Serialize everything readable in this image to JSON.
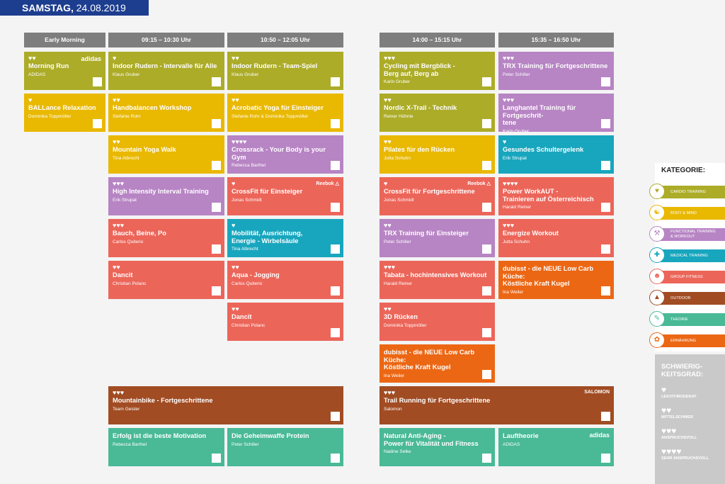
{
  "date": {
    "day": "SAMSTAG,",
    "date": "24.08.2019"
  },
  "columns": [
    "Early Morning",
    "09:15 – 10:30 Uhr",
    "10:50 – 12:05 Uhr",
    "14:00 – 15:15 Uhr",
    "15:35 – 16:50 Uhr"
  ],
  "sessions": [
    {
      "col": 0,
      "row": 0,
      "cat": "cardio",
      "hearts": "♥♥",
      "title": "Morning Run",
      "teacher": "ADIDAS",
      "brand": "adidas"
    },
    {
      "col": 0,
      "row": 1,
      "cat": "body",
      "hearts": "♥",
      "title": "BALLance Relaxation",
      "teacher": "Dominika Toppmöller"
    },
    {
      "col": 1,
      "row": 0,
      "cat": "cardio",
      "hearts": "♥",
      "title": "Indoor Rudern - Intervalle für Alle",
      "teacher": "Klaus Gruber"
    },
    {
      "col": 1,
      "row": 1,
      "cat": "body",
      "hearts": "♥♥",
      "title": "Handbalancen Workshop",
      "teacher": "Stefanie Rohr"
    },
    {
      "col": 1,
      "row": 2,
      "cat": "body",
      "hearts": "♥♥",
      "title": "Mountain Yoga Walk",
      "teacher": "Tina Albrecht"
    },
    {
      "col": 1,
      "row": 3,
      "cat": "func",
      "hearts": "♥♥♥",
      "title": "High Intensity Interval Training",
      "teacher": "Erik Strupat"
    },
    {
      "col": 1,
      "row": 4,
      "cat": "group",
      "hearts": "♥♥♥",
      "title": "Bauch, Beine, Po",
      "teacher": "Carlos Quiterio"
    },
    {
      "col": 1,
      "row": 5,
      "cat": "group",
      "hearts": "♥♥",
      "title": "Dancit",
      "teacher": "Christian Polanc"
    },
    {
      "col": 2,
      "row": 0,
      "cat": "cardio",
      "hearts": "♥♥",
      "title": "Indoor Rudern - Team-Spiel",
      "teacher": "Klaus Gruber"
    },
    {
      "col": 2,
      "row": 1,
      "cat": "body",
      "hearts": "♥♥",
      "title": "Acrobatic Yoga für Einsteiger",
      "teacher": "Stefanie Rohr & Dominika Toppmöller"
    },
    {
      "col": 2,
      "row": 2,
      "cat": "func",
      "hearts": "♥♥♥♥",
      "title": "Crossrack - Your Body is your Gym",
      "teacher": "Rebecca Barthel"
    },
    {
      "col": 2,
      "row": 3,
      "cat": "group",
      "hearts": "♥",
      "title": "CrossFit für Einsteiger",
      "teacher": "Jonas Schmidt",
      "brand": "Reebok △"
    },
    {
      "col": 2,
      "row": 4,
      "cat": "med",
      "hearts": "♥",
      "title": "Mobilität, Ausrichtung,\nEnergie - Wirbelsäule",
      "teacher": "Tina Albrecht"
    },
    {
      "col": 2,
      "row": 5,
      "cat": "group",
      "hearts": "♥♥",
      "title": "Aqua - Jogging",
      "teacher": "Carlos Quiterio"
    },
    {
      "col": 2,
      "row": 6,
      "cat": "group",
      "hearts": "♥♥",
      "title": "Dancit",
      "teacher": "Christian Polanc"
    },
    {
      "col": 3,
      "row": 0,
      "cat": "cardio",
      "hearts": "♥♥♥",
      "title": "Cycling mit Bergblick -\nBerg auf, Berg ab",
      "teacher": "Karin Gruber"
    },
    {
      "col": 3,
      "row": 1,
      "cat": "cardio",
      "hearts": "♥♥",
      "title": "Nordic X-Trail - Technik",
      "teacher": "Reiner Hühnle"
    },
    {
      "col": 3,
      "row": 2,
      "cat": "body",
      "hearts": "♥♥",
      "title": "Pilates für den Rücken",
      "teacher": "Jutta Schuhn"
    },
    {
      "col": 3,
      "row": 3,
      "cat": "group",
      "hearts": "♥",
      "title": "CrossFit für Fortgeschrittene",
      "teacher": "Jonas Schmidt",
      "brand": "Reebok △"
    },
    {
      "col": 3,
      "row": 4,
      "cat": "func",
      "hearts": "♥♥",
      "title": "TRX Training für Einsteiger",
      "teacher": "Peter Schiller"
    },
    {
      "col": 3,
      "row": 5,
      "cat": "group",
      "hearts": "♥♥♥",
      "title": "Tabata - hochintensives Workout",
      "teacher": "Harald Reiner"
    },
    {
      "col": 3,
      "row": 6,
      "cat": "group",
      "hearts": "♥♥",
      "title": "3D Rücken",
      "teacher": "Dominika Toppmöller"
    },
    {
      "col": 3,
      "row": 7,
      "cat": "nutr",
      "hearts": "",
      "title": "dubisst - die NEUE Low Carb Küche:\nKöstliche Kraft Kugel",
      "teacher": "Ina Weiler"
    },
    {
      "col": 4,
      "row": 0,
      "cat": "func",
      "hearts": "♥♥♥",
      "title": "TRX Training für Fortgeschrittene",
      "teacher": "Peter Schiller"
    },
    {
      "col": 4,
      "row": 1,
      "cat": "func",
      "hearts": "♥♥♥",
      "title": "Langhantel Training für Fortgeschrit-\ntene",
      "teacher": "Karin Gruber"
    },
    {
      "col": 4,
      "row": 2,
      "cat": "med",
      "hearts": "♥",
      "title": "Gesundes Schultergelenk",
      "teacher": "Erik Strupat"
    },
    {
      "col": 4,
      "row": 3,
      "cat": "group",
      "hearts": "♥♥♥♥",
      "title": "Power WorkAUT -\nTrainieren auf Österreichisch",
      "teacher": "Harald Reiner"
    },
    {
      "col": 4,
      "row": 4,
      "cat": "group",
      "hearts": "♥♥♥",
      "title": "Energize Workout",
      "teacher": "Jutta Schuhn"
    },
    {
      "col": 4,
      "row": 5,
      "cat": "nutr",
      "hearts": "",
      "title": "dubisst - die NEUE Low Carb Küche:\nKöstliche Kraft Kugel",
      "teacher": "Ina Weiler"
    }
  ],
  "wide_sessions": [
    {
      "block": "left",
      "cat": "out",
      "hearts": "♥♥♥",
      "title": "Mountainbike - Fortgeschrittene",
      "teacher": "Team Geisler"
    },
    {
      "block": "right",
      "cat": "out",
      "hearts": "♥♥♥",
      "title": "Trail Running für Fortgeschrittene",
      "teacher": "Salomon",
      "brand": "SALOMON"
    }
  ],
  "bottom_sessions": [
    {
      "col": 1,
      "cat": "theo",
      "hearts": "",
      "title": "Erfolg ist die beste Motivation",
      "teacher": "Rebecca Barthel"
    },
    {
      "col": 2,
      "cat": "theo",
      "hearts": "",
      "title": "Die Geheimwaffe Protein",
      "teacher": "Peter Schiller"
    },
    {
      "col": 3,
      "cat": "theo",
      "hearts": "",
      "title": "Natural Anti-Aging -\nPower für Vitalität und Fitness",
      "teacher": "Nadine Selke"
    },
    {
      "col": 4,
      "cat": "theo",
      "hearts": "",
      "title": "Lauftheorie",
      "teacher": "ADIDAS",
      "brand": "adidas"
    }
  ],
  "legend": {
    "title": "KATEGORIE:",
    "items": [
      {
        "cat": "cardio",
        "label": "CARDIO TRAINING",
        "icon": "heart-icon",
        "glyph": "♥"
      },
      {
        "cat": "body",
        "label": "BODY & MIND",
        "icon": "meditation-icon",
        "glyph": "☯"
      },
      {
        "cat": "func",
        "label": "FUNCTIONAL TRAINING\n& WORKOUT",
        "icon": "dumbbell-icon",
        "glyph": "⚒"
      },
      {
        "cat": "med",
        "label": "MEDICAL TRAINING",
        "icon": "medical-cross-icon",
        "glyph": "✚"
      },
      {
        "cat": "group",
        "label": "GROUP FITNESS",
        "icon": "group-icon",
        "glyph": "☻"
      },
      {
        "cat": "out",
        "label": "OUTDOOR",
        "icon": "mountain-icon",
        "glyph": "▲"
      },
      {
        "cat": "theo",
        "label": "THEORIE",
        "icon": "book-icon",
        "glyph": "✎"
      },
      {
        "cat": "nutr",
        "label": "ERNÄHRUNG",
        "icon": "food-icon",
        "glyph": "✿"
      }
    ]
  },
  "difficulty": {
    "title": "SCHWIERIG-\nKEITSGRAD:",
    "items": [
      {
        "hearts": "♥",
        "label": "LEICHT/MODERAT"
      },
      {
        "hearts": "♥♥",
        "label": "MITTELSCHWER"
      },
      {
        "hearts": "♥♥♥",
        "label": "ANSPRUCHSVOLL"
      },
      {
        "hearts": "♥♥♥♥",
        "label": "SEHR ANSPRUCHSVOLL"
      }
    ]
  },
  "colors": {
    "cardio": "#acac28",
    "body": "#e9b800",
    "func": "#b784c4",
    "med": "#18a6be",
    "group": "#ec6559",
    "out": "#a14c23",
    "theo": "#49b996",
    "nutr": "#ec6714",
    "date_bar": "#1d3d8f",
    "header": "#7e7e7e"
  }
}
